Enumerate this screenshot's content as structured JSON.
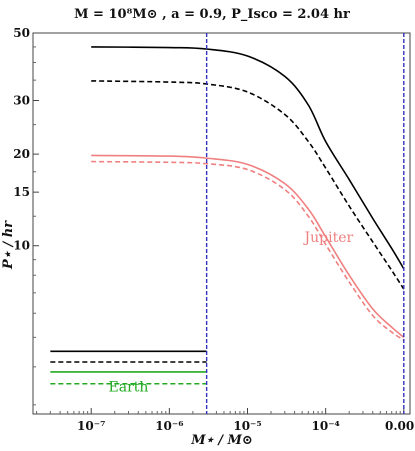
{
  "chart_data": {
    "type": "line",
    "title": "M = 10⁸M⊙ , a = 0.9, P_Isco = 2.04 hr",
    "xlabel": "M⋆ / M⊙",
    "ylabel": "P⋆ / hr",
    "x_scale": "log",
    "y_scale": "log",
    "xlim": [
      1.8e-08,
      0.0012
    ],
    "ylim": [
      2.8,
      50
    ],
    "x_ticks": [
      {
        "value": 1e-07,
        "label": "10⁻⁷"
      },
      {
        "value": 1e-06,
        "label": "10⁻⁶"
      },
      {
        "value": 1e-05,
        "label": "10⁻⁵"
      },
      {
        "value": 0.0001,
        "label": "10⁻⁴"
      },
      {
        "value": 0.001,
        "label": "0.001"
      }
    ],
    "y_ticks": [
      {
        "value": 10,
        "label": "10"
      },
      {
        "value": 15,
        "label": "15"
      },
      {
        "value": 20,
        "label": "20"
      },
      {
        "value": 30,
        "label": "30"
      },
      {
        "value": 50,
        "label": "50"
      }
    ],
    "series": [
      {
        "color": "#000000",
        "style": "solid",
        "x": [
          1e-07,
          1e-06,
          3e-06,
          1e-05,
          3e-05,
          6e-05,
          0.0001,
          0.0002,
          0.0004,
          0.0007,
          0.001
        ],
        "y": [
          45,
          44.8,
          44.3,
          42,
          36,
          29,
          22,
          16.5,
          12.3,
          9.8,
          8.4
        ]
      },
      {
        "color": "#000000",
        "style": "dashed",
        "x": [
          1e-07,
          1e-06,
          3e-06,
          1e-05,
          3e-05,
          6e-05,
          0.0001,
          0.0002,
          0.0004,
          0.0007,
          0.001
        ],
        "y": [
          34.8,
          34.5,
          34,
          32,
          27,
          22,
          18,
          13.5,
          10.3,
          8.3,
          7.2
        ]
      },
      {
        "color": "#f08080",
        "style": "solid",
        "x": [
          1e-07,
          1e-06,
          3e-06,
          1e-05,
          3e-05,
          6e-05,
          0.0001,
          0.0002,
          0.0004,
          0.0007,
          0.001
        ],
        "y": [
          19.8,
          19.7,
          19.4,
          18.5,
          16,
          13.2,
          10.7,
          8.0,
          6.2,
          5.4,
          5.0
        ]
      },
      {
        "color": "#f08080",
        "style": "dashed",
        "x": [
          1e-07,
          1e-06,
          3e-06,
          1e-05,
          3e-05,
          6e-05,
          0.0001,
          0.0002,
          0.0004,
          0.0007,
          0.001
        ],
        "y": [
          18.9,
          18.8,
          18.6,
          17.8,
          15.3,
          12.5,
          10.1,
          7.6,
          5.9,
          5.2,
          4.9
        ]
      },
      {
        "color": "#000000",
        "style": "solid",
        "x": [
          3e-08,
          3e-06
        ],
        "y": [
          4.5,
          4.5
        ]
      },
      {
        "color": "#000000",
        "style": "dashed",
        "x": [
          3e-08,
          3e-06
        ],
        "y": [
          4.15,
          4.15
        ]
      },
      {
        "color": "#22aa22",
        "style": "solid",
        "x": [
          3e-08,
          3e-06
        ],
        "y": [
          3.85,
          3.85
        ]
      },
      {
        "color": "#22aa22",
        "style": "dashed",
        "x": [
          3e-08,
          3e-06
        ],
        "y": [
          3.52,
          3.52
        ]
      }
    ],
    "vertical_lines": [
      {
        "x": 3e-06,
        "color": "#3333bb",
        "style": "dashed"
      },
      {
        "x": 0.001,
        "color": "#3333bb",
        "style": "dashed"
      }
    ],
    "annotations": [
      {
        "text": "Jupiter",
        "x": 0.00011,
        "y": 10.3,
        "color": "#f08080"
      },
      {
        "text": "Earth",
        "x": 3e-07,
        "y": 3.32,
        "color": "#22aa22"
      }
    ],
    "grid": false
  }
}
